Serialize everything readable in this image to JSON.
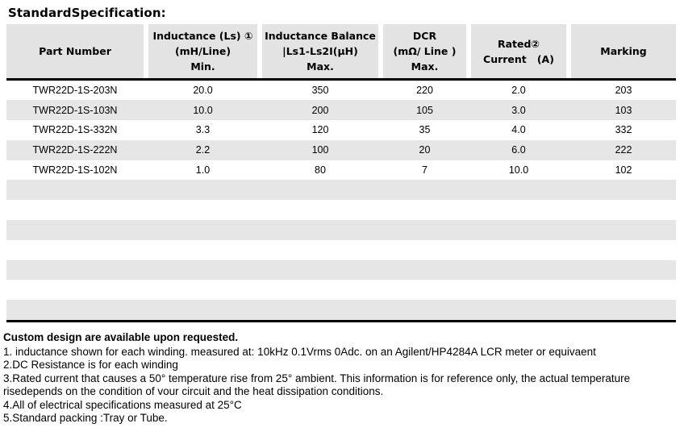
{
  "page": {
    "title": "StandardSpecification:",
    "colors": {
      "header_fill": "#e3e3e3",
      "stripe_fill": "#e6e6e6",
      "rule": "#000000",
      "text": "#000000"
    }
  },
  "table": {
    "columns": [
      {
        "id": "part-number",
        "lines": [
          "Part Number"
        ]
      },
      {
        "id": "inductance",
        "lines": [
          "Inductance (Ls) ①",
          "(mH/Line)",
          "Min."
        ]
      },
      {
        "id": "inductance-balance",
        "lines": [
          "Inductance Balance",
          "|Ls1-Ls2I(μH)",
          "Max."
        ]
      },
      {
        "id": "dcr",
        "lines": [
          "DCR",
          "(mΩ/ Line )",
          "Max."
        ]
      },
      {
        "id": "rated-current",
        "lines": [
          "Rated②",
          "Current   (A)"
        ]
      },
      {
        "id": "marking",
        "lines": [
          "Marking"
        ]
      }
    ],
    "rows": [
      [
        "TWR22D-1S-203N",
        "20.0",
        "350",
        "220",
        "2.0",
        "203"
      ],
      [
        "TWR22D-1S-103N",
        "10.0",
        "200",
        "105",
        "3.0",
        "103"
      ],
      [
        "TWR22D-1S-332N",
        "3.3",
        "120",
        "35",
        "4.0",
        "332"
      ],
      [
        "TWR22D-1S-222N",
        "2.2",
        "100",
        "20",
        "6.0",
        "222"
      ],
      [
        "TWR22D-1S-102N",
        "1.0",
        "80",
        "7",
        "10.0",
        "102"
      ]
    ],
    "empty_row_count": 7
  },
  "notes": {
    "heading": "Custom design are available upon requested.",
    "lines": [
      "1. inductance shown for each winding. measured at: 10kHz 0.1Vrms 0Adc. on an Agilent/HP4284A LCR meter or equivaent",
      "2.DC Resistance is for each winding",
      "3.Rated current that causes a 50° temperature rise from 25° ambient. This information is for reference only, the actual temperature",
      "risedepends on the condition of vour circuit and the heat dissipation conditions.",
      "4.All of electrical specifications measured at 25°C",
      "5.Standard packing :Tray or Tube."
    ]
  }
}
